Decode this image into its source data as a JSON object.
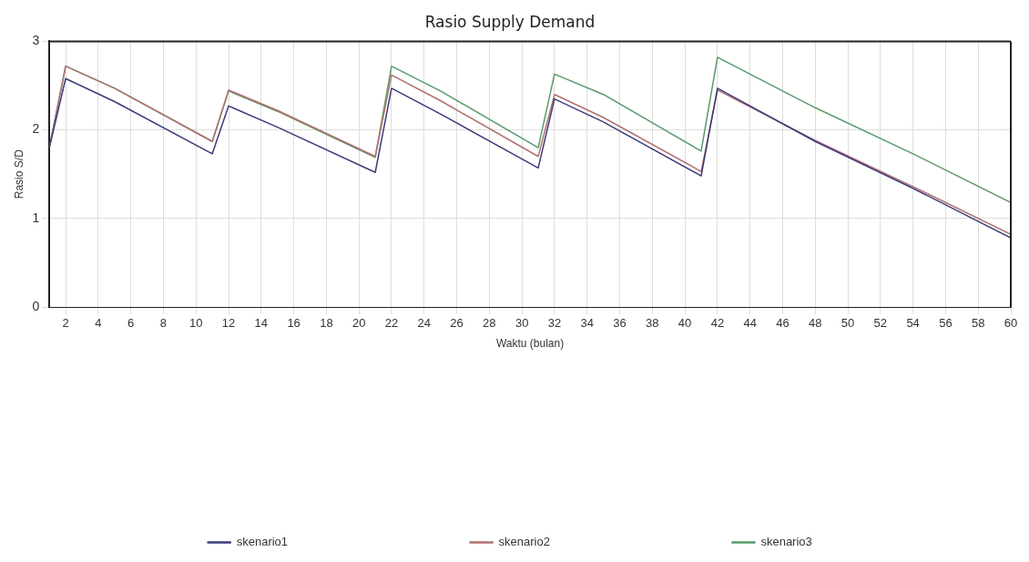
{
  "chart_data": {
    "type": "line",
    "title": "Rasio Supply Demand",
    "xlabel": "Waktu (bulan)",
    "ylabel": "Rasio S/D",
    "x": [
      1,
      2,
      5,
      11,
      12,
      15,
      21,
      22,
      25,
      31,
      32,
      35,
      41,
      42,
      48,
      54,
      60
    ],
    "series": [
      {
        "name": "skenario1",
        "color": "#3b3b7a",
        "values": [
          1.8,
          2.58,
          2.32,
          1.73,
          2.27,
          2.03,
          1.52,
          2.47,
          2.18,
          1.57,
          2.35,
          2.09,
          1.48,
          2.47,
          1.87,
          1.34,
          0.78
        ]
      },
      {
        "name": "skenario2",
        "color": "#b07070",
        "values": [
          1.8,
          2.72,
          2.47,
          1.87,
          2.45,
          2.22,
          1.7,
          2.62,
          2.33,
          1.7,
          2.4,
          2.14,
          1.53,
          2.45,
          1.88,
          1.36,
          0.82
        ]
      },
      {
        "name": "skenario3",
        "color": "#5a9a6a",
        "values": [
          1.8,
          2.72,
          2.47,
          1.87,
          2.44,
          2.21,
          1.69,
          2.72,
          2.44,
          1.8,
          2.63,
          2.4,
          1.76,
          2.82,
          2.25,
          1.73,
          1.18
        ]
      }
    ],
    "xlim": [
      1,
      60
    ],
    "xticks": [
      2,
      4,
      6,
      8,
      10,
      12,
      14,
      16,
      18,
      20,
      22,
      24,
      26,
      28,
      30,
      32,
      34,
      36,
      38,
      40,
      42,
      44,
      46,
      48,
      50,
      52,
      54,
      56,
      58,
      60
    ],
    "ylim": [
      0,
      3
    ],
    "yticks": [
      0,
      1,
      2,
      3
    ],
    "grid": true,
    "legend": "bottom",
    "marker": "none",
    "line_style": "solid"
  }
}
